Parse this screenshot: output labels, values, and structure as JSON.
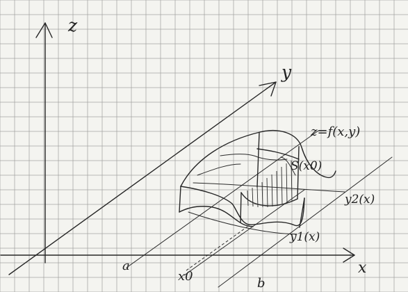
{
  "labels": {
    "z_axis": "z",
    "y_axis": "y",
    "x_axis": "x",
    "surface": "z=f(x,y)",
    "cross_section": "S(x0)",
    "y2": "y2(x)",
    "y1": "y1(x)",
    "a": "a",
    "x0": "x0",
    "b": "b"
  },
  "colors": {
    "paper": "#f4f4f0",
    "grid": "#9b9b98",
    "ink": "#262626"
  }
}
